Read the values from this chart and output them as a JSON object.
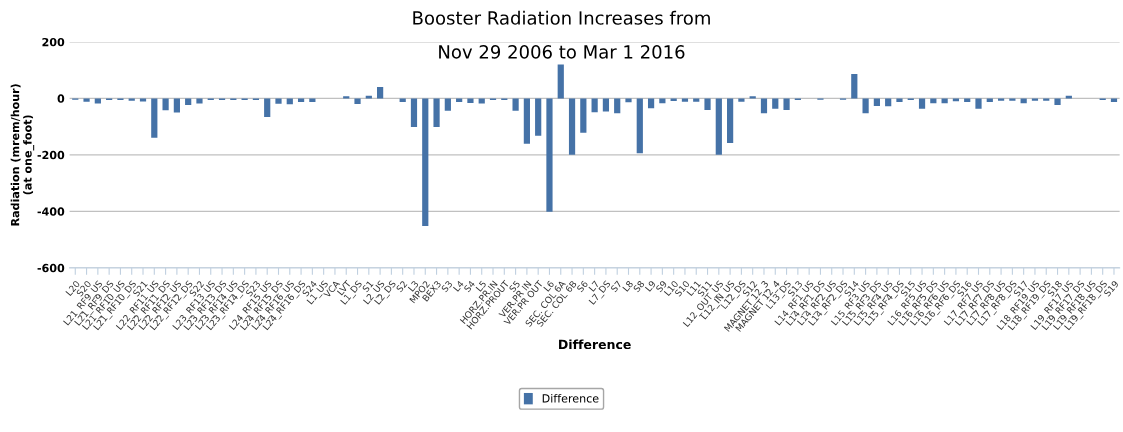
{
  "chart_data": {
    "type": "bar",
    "title": "Booster Radiation Increases from\nNov 29 2006 to Mar 1 2016",
    "xlabel": "Difference",
    "ylabel": "Radiation (mrem/hour)\n(at one_foot)",
    "categories": [
      "L20",
      "S20",
      "L21_RF9_US",
      "L21_RF9_DS",
      "L21_RF10_US",
      "L21_RF10_DS",
      "S21",
      "L22_RF11_US",
      "L22_RF11_DS",
      "L22_RF12_US",
      "L22_RF12_DS",
      "S22",
      "L23_RF13_US",
      "L23_RF13_DS",
      "L23_RF14_US",
      "L23_RF14_DS",
      "S23",
      "L24_RF15_US",
      "L24_RF15_DS",
      "L24_RF16_US",
      "L24_RF16_DS",
      "S24",
      "L1_US",
      "VCA",
      "LVT",
      "L1_DS",
      "S1",
      "L2_US",
      "L2_DS",
      "S2",
      "L3",
      "MPO2",
      "BEX3",
      "S3",
      "L4",
      "S4",
      "L5",
      "HORZ.PR.IN",
      "HORZ.PROUT",
      "S5",
      "VER.PR IN",
      "VER.PR OUT",
      "L6",
      "SEC. COL 6A",
      "SEC. COL 6B",
      "S6",
      "L7",
      "L7_DS",
      "S7",
      "L8",
      "S8",
      "L9",
      "S9",
      "L10",
      "S10",
      "L11",
      "S11",
      "L12_OUT_US",
      "L12_IN_US",
      "L12_DS",
      "S12",
      "MAGNET 12_3",
      "MAGNET 12_4",
      "L13_DS",
      "S13",
      "L14_RF1_US",
      "L14_RF1_DS",
      "L14_RF2_US",
      "L14_RF2_DS",
      "S14",
      "L15_RF3_US",
      "L15_RF3_DS",
      "L15_RF4_US",
      "L15_RF4_DS",
      "S15",
      "L16_RF5_US",
      "L16_RF5_DS",
      "L16_RF6_US",
      "L16_RF6_DS",
      "S16",
      "L17_RF7_US",
      "L17_RF7_DS",
      "L17_RF8_US",
      "L17_RF8_DS",
      "S17",
      "L18_RF19_US",
      "L18_RF19_DS",
      "S18",
      "L19_RF17_US",
      "L19_RF17_DS",
      "L19_RF18_US",
      "L19_RF18_DS",
      "S19"
    ],
    "series": [
      {
        "name": "Difference",
        "color": "#4572a7",
        "values": [
          -5,
          -12,
          -18,
          -6,
          -6,
          -8,
          -11,
          -139,
          -42,
          -50,
          -23,
          -18,
          -6,
          -6,
          -6,
          -6,
          -6,
          -66,
          -19,
          -21,
          -13,
          -13,
          null,
          null,
          8,
          -20,
          9,
          40,
          null,
          -13,
          -101,
          -452,
          -101,
          -44,
          -13,
          -16,
          -18,
          -6,
          -6,
          -44,
          -161,
          -132,
          -401,
          120,
          -200,
          -122,
          -49,
          -46,
          -53,
          -14,
          -194,
          -35,
          -17,
          -9,
          -12,
          -12,
          -41,
          -200,
          -158,
          -12,
          8,
          -53,
          -37,
          -41,
          -6,
          null,
          -5,
          null,
          -5,
          86,
          -53,
          -27,
          -28,
          -13,
          -6,
          -37,
          -17,
          -17,
          -10,
          -13,
          -37,
          -13,
          -8,
          -8,
          -17,
          -8,
          -8,
          -23,
          9,
          null,
          null,
          -6,
          -13
        ]
      }
    ],
    "ylim": [
      -600,
      200
    ],
    "yticks": [
      -600,
      -400,
      -200,
      0,
      200
    ],
    "grid": "y",
    "legend": "bottom"
  }
}
